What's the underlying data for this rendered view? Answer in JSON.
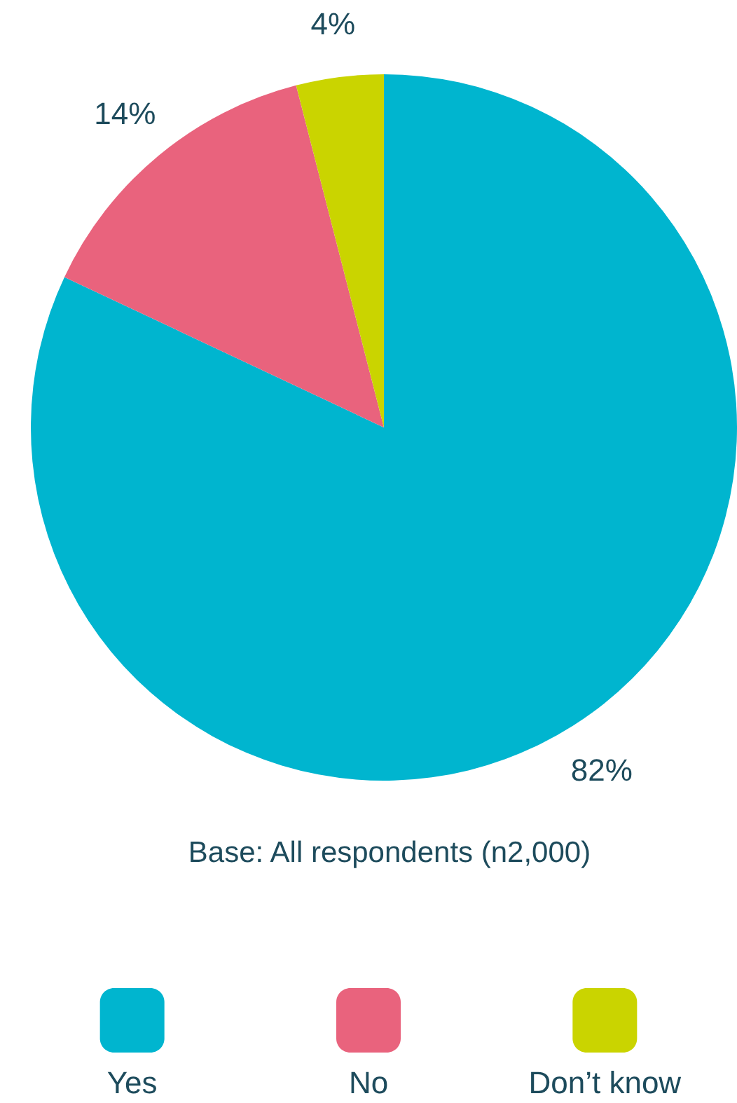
{
  "chart_data": {
    "type": "pie",
    "categories": [
      "Yes",
      "No",
      "Don’t know"
    ],
    "values": [
      82,
      14,
      4
    ],
    "colors": [
      "#00b5cf",
      "#e9637d",
      "#cad400"
    ],
    "value_labels": [
      "82%",
      "14%",
      "4%"
    ],
    "annotations": [
      "Base: All respondents (n2,000)"
    ],
    "legend": "bottom"
  }
}
